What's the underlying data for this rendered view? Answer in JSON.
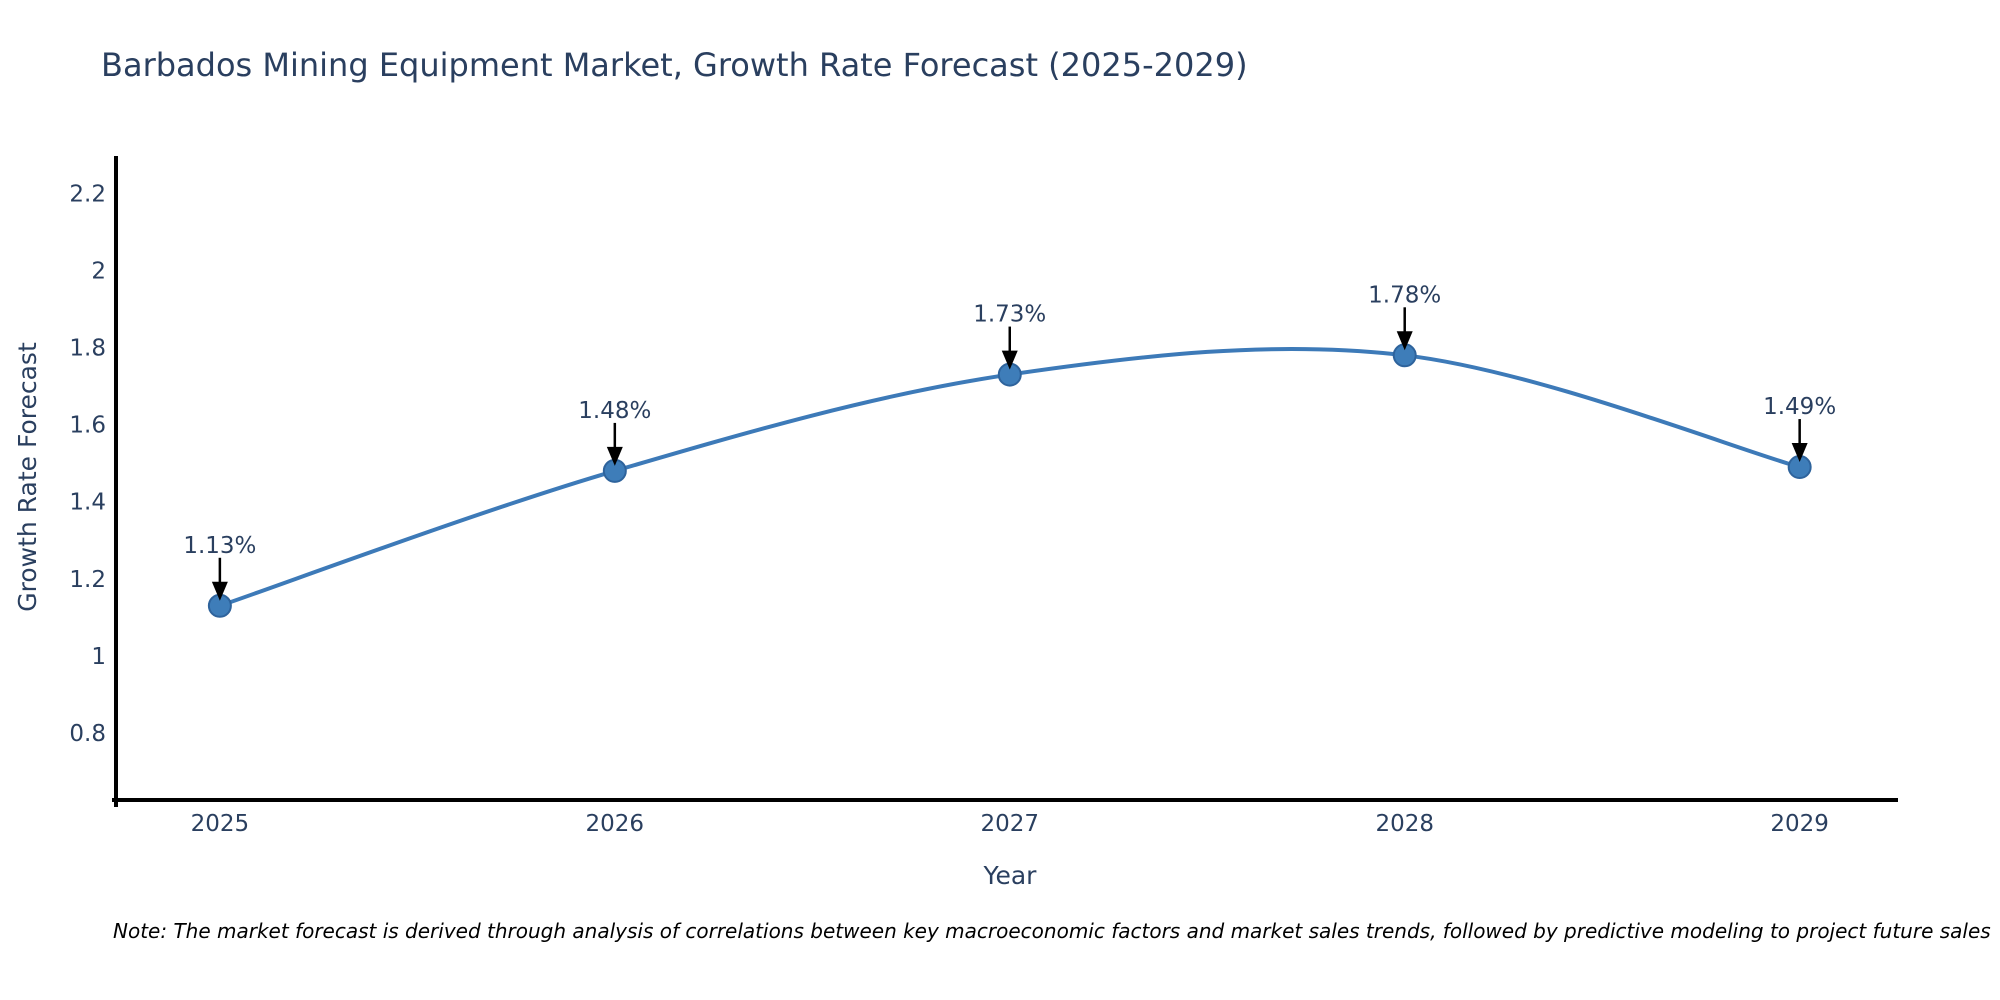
{
  "title": "Barbados Mining Equipment Market, Growth Rate Forecast (2025-2029)",
  "note": "Note: The market forecast is derived through analysis of correlations between key macroeconomic factors and market sales trends, followed by predictive modeling to project future sales",
  "chart_data": {
    "type": "line",
    "line_shape": "spline",
    "title": "Barbados Mining Equipment Market, Growth Rate Forecast (2025-2029)",
    "xlabel": "Year",
    "ylabel": "Growth Rate Forecast",
    "x": [
      2025,
      2026,
      2027,
      2028,
      2029
    ],
    "values": [
      1.13,
      1.48,
      1.73,
      1.78,
      1.49
    ],
    "point_labels": [
      "1.13%",
      "1.48%",
      "1.73%",
      "1.78%",
      "1.49%"
    ],
    "x_ticks": [
      "2025",
      "2026",
      "2027",
      "2028",
      "2029"
    ],
    "y_ticks": [
      "0.8",
      "1",
      "1.2",
      "1.4",
      "1.6",
      "1.8",
      "2",
      "2.2"
    ],
    "y_tick_values": [
      0.8,
      1,
      1.2,
      1.4,
      1.6,
      1.8,
      2,
      2.2
    ],
    "xlim": [
      2024.737,
      2029.249
    ],
    "ylim": [
      0.626,
      2.292
    ],
    "grid": false,
    "legend": "none",
    "colors": {
      "line": "#3d7ab8",
      "marker_fill": "#3e7db9",
      "marker_edge": "#2e639c",
      "axis": "#000000",
      "tick_text": "#2a3f5f",
      "annotation_text": "#2a3f5f",
      "annotation_arrow": "#000000",
      "background": "#ffffff"
    }
  }
}
